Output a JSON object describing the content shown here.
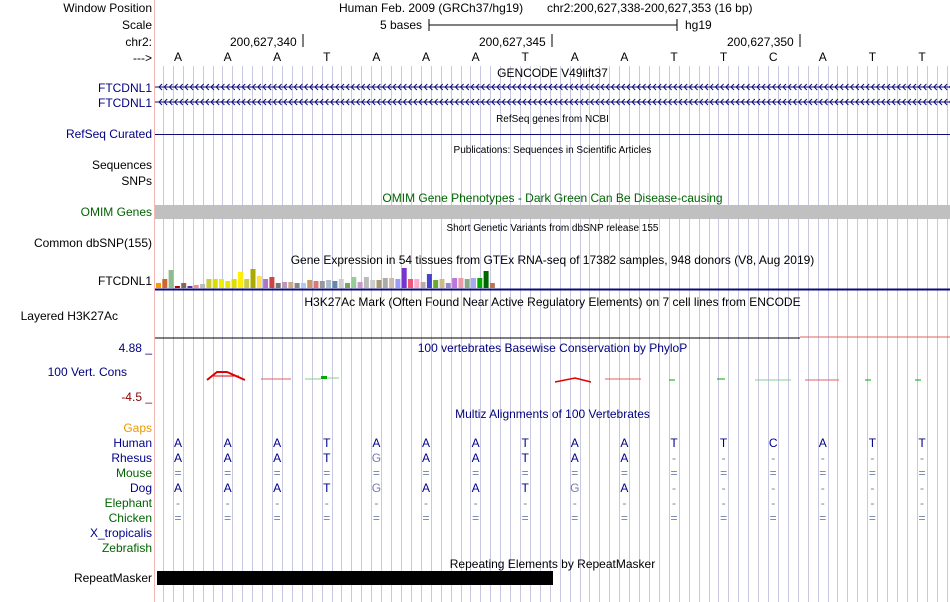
{
  "header": {
    "window_position_label": "Window Position",
    "scale_label": "Scale",
    "chrom_label": "chr2:",
    "strand_label": "--->",
    "assembly": "Human Feb. 2009 (GRCh37/hg19)",
    "coordinates": "chr2:200,627,338-200,627,353 (16 bp)",
    "scale_text": "5 bases",
    "db": "hg19",
    "ticks": [
      "200,627,340",
      "200,627,345",
      "200,627,350"
    ]
  },
  "bases": [
    "A",
    "A",
    "A",
    "T",
    "A",
    "A",
    "A",
    "T",
    "A",
    "A",
    "T",
    "T",
    "C",
    "A",
    "T",
    "T"
  ],
  "tracks": {
    "gencode_title": "GENCODE V49lift37",
    "gencode_rows": [
      "FTCDNL1",
      "FTCDNL1"
    ],
    "refseq_label": "RefSeq Curated",
    "refseq_title": "RefSeq genes from NCBI",
    "publications_title": "Publications: Sequences in Scientific Articles",
    "sequences_label": "Sequences",
    "snps_label": "SNPs",
    "omim_title": "OMIM Gene Phenotypes - Dark Green Can Be Disease-causing",
    "omim_label": "OMIM Genes",
    "dbsnp_title": "Short Genetic Variants from dbSNP release 155",
    "dbsnp_label": "Common dbSNP(155)",
    "gtex_title": "Gene Expression in 54 tissues from GTEx RNA-seq of 17382 samples, 948 donors (V8, Aug 2019)",
    "gtex_label": "FTCDNL1",
    "h3k27ac_title": "H3K27Ac Mark (Often Found Near Active Regulatory Elements) on 7 cell lines from ENCODE",
    "h3k27ac_label": "Layered H3K27Ac",
    "phylop_title": "100 vertebrates Basewise Conservation by PhyloP",
    "phylop_label": "100 Vert. Cons",
    "phylop_max": "4.88 _",
    "phylop_min": "-4.5 _",
    "multiz_title": "Multiz Alignments of 100 Vertebrates",
    "gaps_label": "Gaps",
    "repeat_title": "Repeating Elements by RepeatMasker",
    "repeat_label": "RepeatMasker"
  },
  "species": [
    {
      "name": "Human",
      "color": "#00008b",
      "bases": [
        "A",
        "A",
        "A",
        "T",
        "A",
        "A",
        "A",
        "T",
        "A",
        "A",
        "T",
        "T",
        "C",
        "A",
        "T",
        "T"
      ],
      "dim": []
    },
    {
      "name": "Rhesus",
      "color": "#00008b",
      "bases": [
        "A",
        "A",
        "A",
        "T",
        "G",
        "A",
        "A",
        "T",
        "A",
        "A",
        "-",
        "-",
        "-",
        "-",
        "-",
        "-"
      ],
      "dim": [
        4
      ]
    },
    {
      "name": "Mouse",
      "color": "#006400",
      "bases": [
        "=",
        "=",
        "=",
        "=",
        "=",
        "=",
        "=",
        "=",
        "=",
        "=",
        "=",
        "=",
        "=",
        "=",
        "=",
        "="
      ],
      "dim": []
    },
    {
      "name": "Dog",
      "color": "#00008b",
      "bases": [
        "A",
        "A",
        "A",
        "T",
        "G",
        "A",
        "A",
        "T",
        "G",
        "A",
        "-",
        "-",
        "-",
        "-",
        "-",
        "-"
      ],
      "dim": [
        4,
        8
      ]
    },
    {
      "name": "Elephant",
      "color": "#006400",
      "bases": [
        "-",
        "-",
        "-",
        "-",
        "-",
        "-",
        "-",
        "-",
        "-",
        "-",
        "-",
        "-",
        "-",
        "-",
        "-",
        "-"
      ],
      "dim": []
    },
    {
      "name": "Chicken",
      "color": "#006400",
      "bases": [
        "=",
        "=",
        "=",
        "=",
        "=",
        "=",
        "=",
        "=",
        "=",
        "=",
        "=",
        "=",
        "=",
        "=",
        "=",
        "="
      ],
      "dim": []
    },
    {
      "name": "X_tropicalis",
      "color": "#00008b",
      "bases": [],
      "dim": []
    },
    {
      "name": "Zebrafish",
      "color": "#006400",
      "bases": [],
      "dim": []
    }
  ],
  "gtex_values": [
    9,
    16,
    33,
    3,
    9,
    4,
    6,
    7,
    16,
    16,
    16,
    13,
    16,
    29,
    16,
    35,
    22,
    16,
    21,
    9,
    12,
    12,
    10,
    10,
    15,
    13,
    13,
    15,
    13,
    16,
    10,
    20,
    12,
    20,
    15,
    15,
    19,
    19,
    16,
    37,
    16,
    16,
    12,
    25,
    15,
    16,
    10,
    19,
    19,
    16,
    18,
    19,
    32,
    10
  ],
  "gtex_colors": [
    "#ff9900",
    "#cc6633",
    "#8fbc8f",
    "#aa0000",
    "#886655",
    "#5533aa",
    "#ff8888",
    "#bbbbbb",
    "#cccc33",
    "#dddd00",
    "#eeee00",
    "#e6e600",
    "#dddd00",
    "#ffee00",
    "#cccc44",
    "#aaaa00",
    "#ffdd55",
    "#aa77cc",
    "#cc4444",
    "#777777",
    "#bb99bb",
    "#ccaa88",
    "#888888",
    "#aaccee",
    "#cc9966",
    "#dd7777",
    "#999999",
    "#aabbcc",
    "#6688aa",
    "#cccccc",
    "#77aa55",
    "#99cc99",
    "#cc99cc",
    "#bbbbbb",
    "#cccccc",
    "#aa9977",
    "#aaaaaa",
    "#ccbbaa",
    "#9999ff",
    "#7733cc",
    "#ee5577",
    "#ffaacc",
    "#bbaaaa",
    "#4444cc",
    "#66aa33",
    "#ccbb88",
    "#9988cc",
    "#bb77dd",
    "#ee99aa",
    "#88aa88",
    "#aaaaee",
    "#00aa00",
    "#006600",
    "#bb7755"
  ],
  "colors": {
    "track_label_blue": "#000080",
    "omim_green": "#006400",
    "gaps_orange": "#ee9900",
    "grid_line": "#c8c8e0"
  }
}
